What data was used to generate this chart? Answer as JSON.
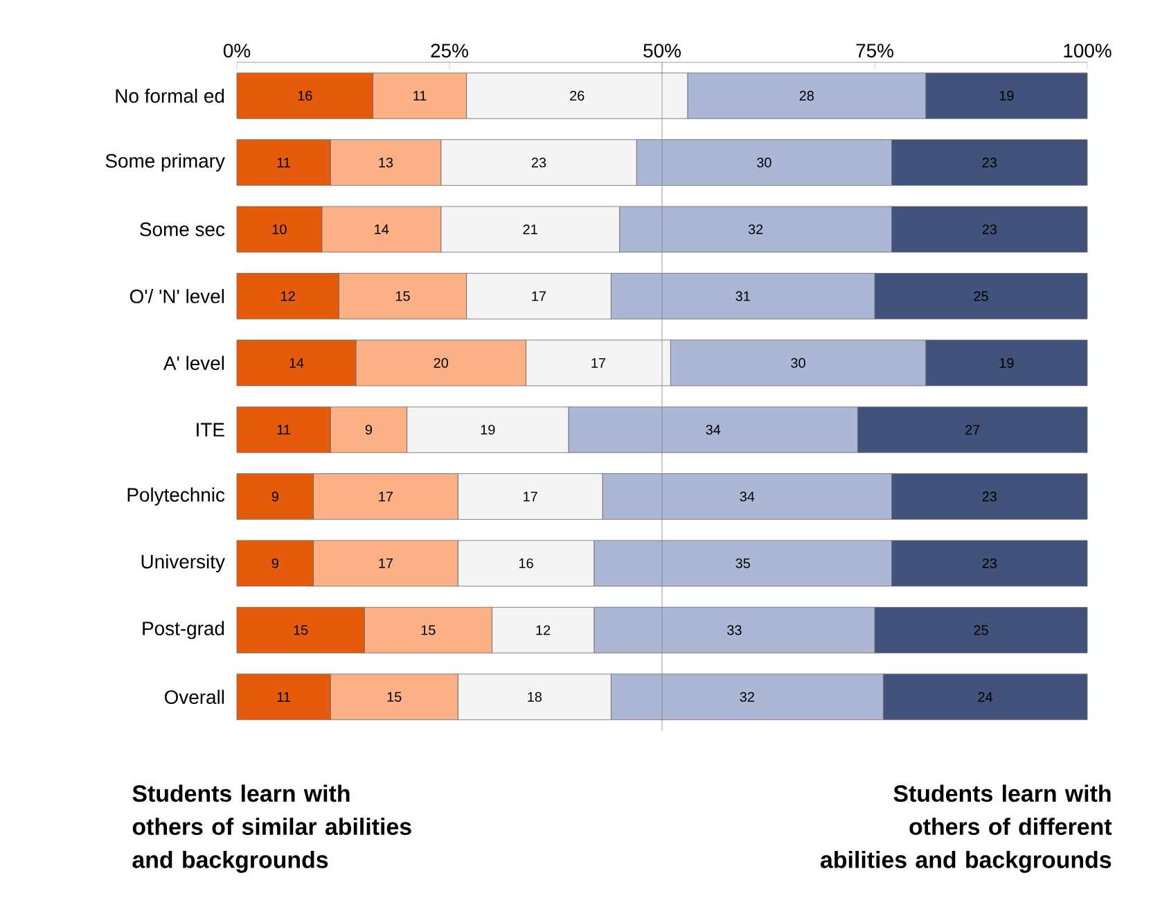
{
  "chart_data": {
    "type": "bar",
    "orientation": "horizontal",
    "stacked": true,
    "data_labels": true,
    "grid": false,
    "categories": [
      "No formal ed",
      "Some primary",
      "Some sec",
      "O'/ 'N' level",
      "A' level",
      "ITE",
      "Polytechnic",
      "University",
      "Post-grad",
      "Overall"
    ],
    "series": [
      {
        "color": "#e35b0b",
        "values": [
          16,
          11,
          10,
          12,
          14,
          11,
          9,
          9,
          15,
          11
        ]
      },
      {
        "color": "#fbb185",
        "values": [
          11,
          13,
          14,
          15,
          20,
          9,
          17,
          17,
          15,
          15
        ]
      },
      {
        "color": "#f4f4f4",
        "values": [
          26,
          23,
          21,
          17,
          17,
          19,
          17,
          16,
          12,
          18
        ]
      },
      {
        "color": "#abb7d5",
        "values": [
          28,
          30,
          32,
          31,
          30,
          34,
          34,
          35,
          33,
          32
        ]
      },
      {
        "color": "#42537b",
        "values": [
          19,
          23,
          23,
          25,
          19,
          27,
          23,
          23,
          25,
          24
        ]
      }
    ],
    "xlim": [
      0,
      100
    ],
    "xticks": [
      {
        "value": 0,
        "label": "0%"
      },
      {
        "value": 25,
        "label": "25%"
      },
      {
        "value": 50,
        "label": "50%"
      },
      {
        "value": 75,
        "label": "75%"
      },
      {
        "value": 100,
        "label": "100%"
      }
    ],
    "ref_lines": [
      {
        "axis": "x",
        "value": 50,
        "color": "#808080"
      }
    ],
    "annotations": [
      "Students learn with others of similar abilities and backgrounds",
      "Students learn with others of different abilities and backgrounds"
    ]
  }
}
